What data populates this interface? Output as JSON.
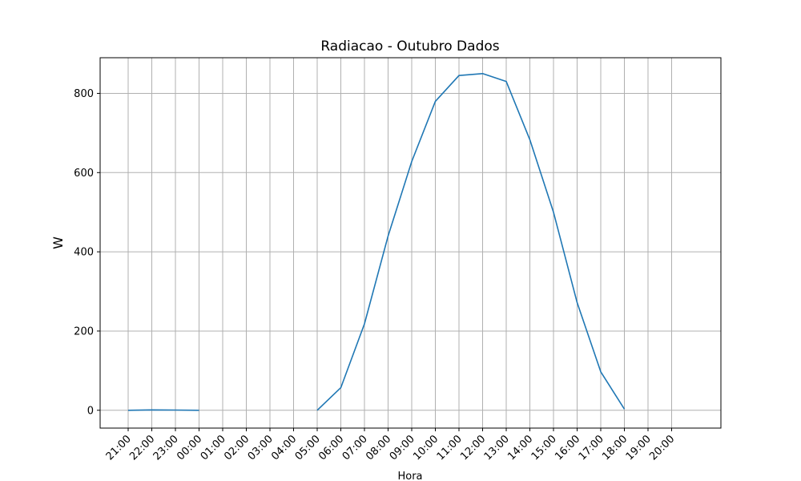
{
  "chart_data": {
    "type": "line",
    "title": "Radiacao - Outubro Dados",
    "xlabel": "Hora",
    "ylabel": "W",
    "x_ticks": [
      "21:00",
      "22:00",
      "23:00",
      "00:00",
      "01:00",
      "02:00",
      "03:00",
      "04:00",
      "05:00",
      "06:00",
      "07:00",
      "08:00",
      "09:00",
      "10:00",
      "11:00",
      "12:00",
      "13:00",
      "14:00",
      "15:00",
      "16:00",
      "17:00",
      "18:00",
      "19:00",
      "20:00"
    ],
    "y_ticks": [
      0,
      200,
      400,
      600,
      800
    ],
    "ylim": [
      -45,
      890
    ],
    "grid": true,
    "color": "#1f77b4",
    "series": [
      {
        "segments": [
          [
            {
              "x": "21:00",
              "y": 0
            },
            {
              "x": "22:00",
              "y": 1
            },
            {
              "x": "23:00",
              "y": 0.5
            },
            {
              "x": "00:00",
              "y": 0
            }
          ],
          [
            {
              "x": "05:00",
              "y": 0
            },
            {
              "x": "06:00",
              "y": 57
            },
            {
              "x": "07:00",
              "y": 218
            },
            {
              "x": "08:00",
              "y": 440
            },
            {
              "x": "09:00",
              "y": 628
            },
            {
              "x": "10:00",
              "y": 780
            },
            {
              "x": "11:00",
              "y": 845
            },
            {
              "x": "12:00",
              "y": 850
            },
            {
              "x": "13:00",
              "y": 830
            },
            {
              "x": "14:00",
              "y": 683
            },
            {
              "x": "15:00",
              "y": 500
            },
            {
              "x": "16:00",
              "y": 272
            },
            {
              "x": "17:00",
              "y": 97
            },
            {
              "x": "18:00",
              "y": 3
            }
          ]
        ]
      }
    ]
  }
}
